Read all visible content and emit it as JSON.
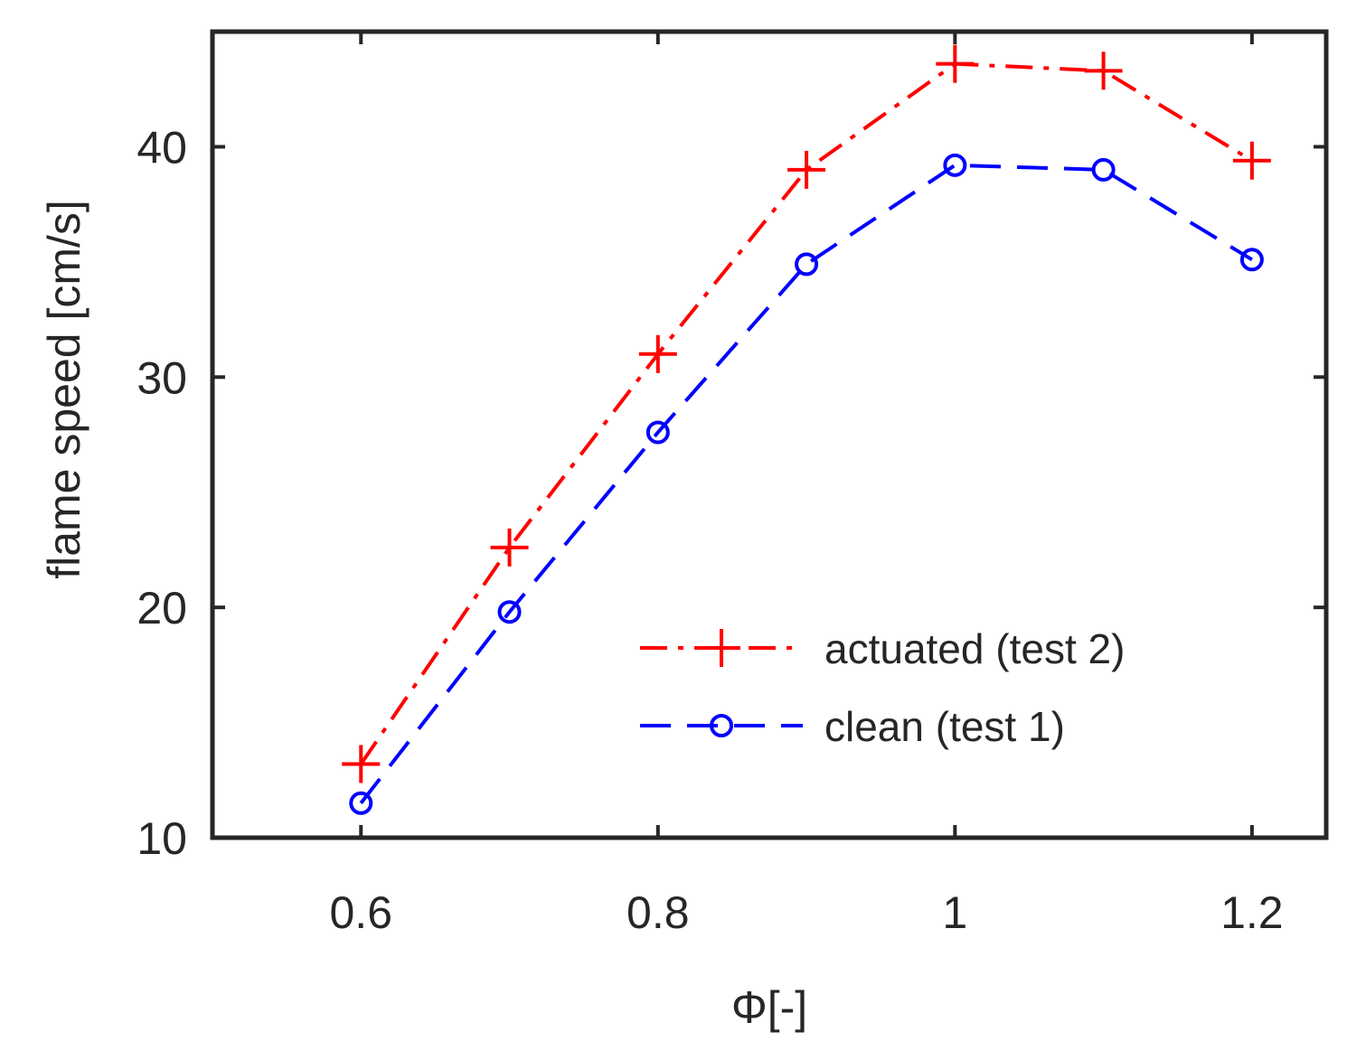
{
  "chart_data": {
    "type": "line",
    "title": "",
    "xlabel": "Φ[-]",
    "ylabel": "flame speed [cm/s]",
    "xlim": [
      0.5,
      1.25
    ],
    "ylim": [
      10,
      45
    ],
    "xticks": [
      0.6,
      0.8,
      1.0,
      1.2
    ],
    "xtick_labels": [
      "0.6",
      "0.8",
      "1",
      "1.2"
    ],
    "yticks": [
      10,
      20,
      30,
      40
    ],
    "ytick_labels": [
      "10",
      "20",
      "30",
      "40"
    ],
    "grid": false,
    "legend_position": "lower-right",
    "series": [
      {
        "name": "actuated (test 2)",
        "color": "#ff0000",
        "line_style": "dash-dot",
        "marker": "plus",
        "x": [
          0.6,
          0.7,
          0.8,
          0.9,
          1.0,
          1.1,
          1.2
        ],
        "y": [
          13.2,
          22.6,
          31.0,
          39.0,
          43.6,
          43.3,
          39.4
        ]
      },
      {
        "name": "clean (test 1)",
        "color": "#0000ff",
        "line_style": "dashed",
        "marker": "circle",
        "x": [
          0.6,
          0.7,
          0.8,
          0.9,
          1.0,
          1.1,
          1.2
        ],
        "y": [
          11.5,
          19.8,
          27.6,
          34.9,
          39.2,
          39.0,
          35.1
        ]
      }
    ]
  }
}
